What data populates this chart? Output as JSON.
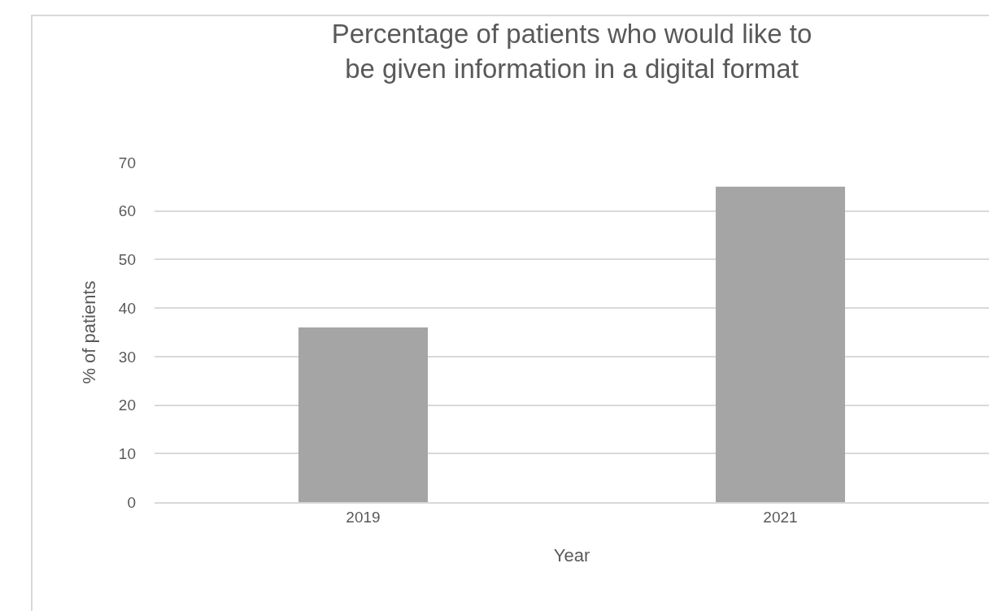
{
  "chart_data": {
    "type": "bar",
    "title": "Percentage of patients who would like to be given information in a digital format",
    "xlabel": "Year",
    "ylabel": "% of patients",
    "categories": [
      "2019",
      "2021"
    ],
    "values": [
      36,
      65
    ],
    "color": "#a5a5a5",
    "ylim": [
      0,
      70
    ],
    "yticks": [
      0,
      10,
      20,
      30,
      40,
      50,
      60,
      70
    ],
    "grid": "y",
    "legend": false
  }
}
